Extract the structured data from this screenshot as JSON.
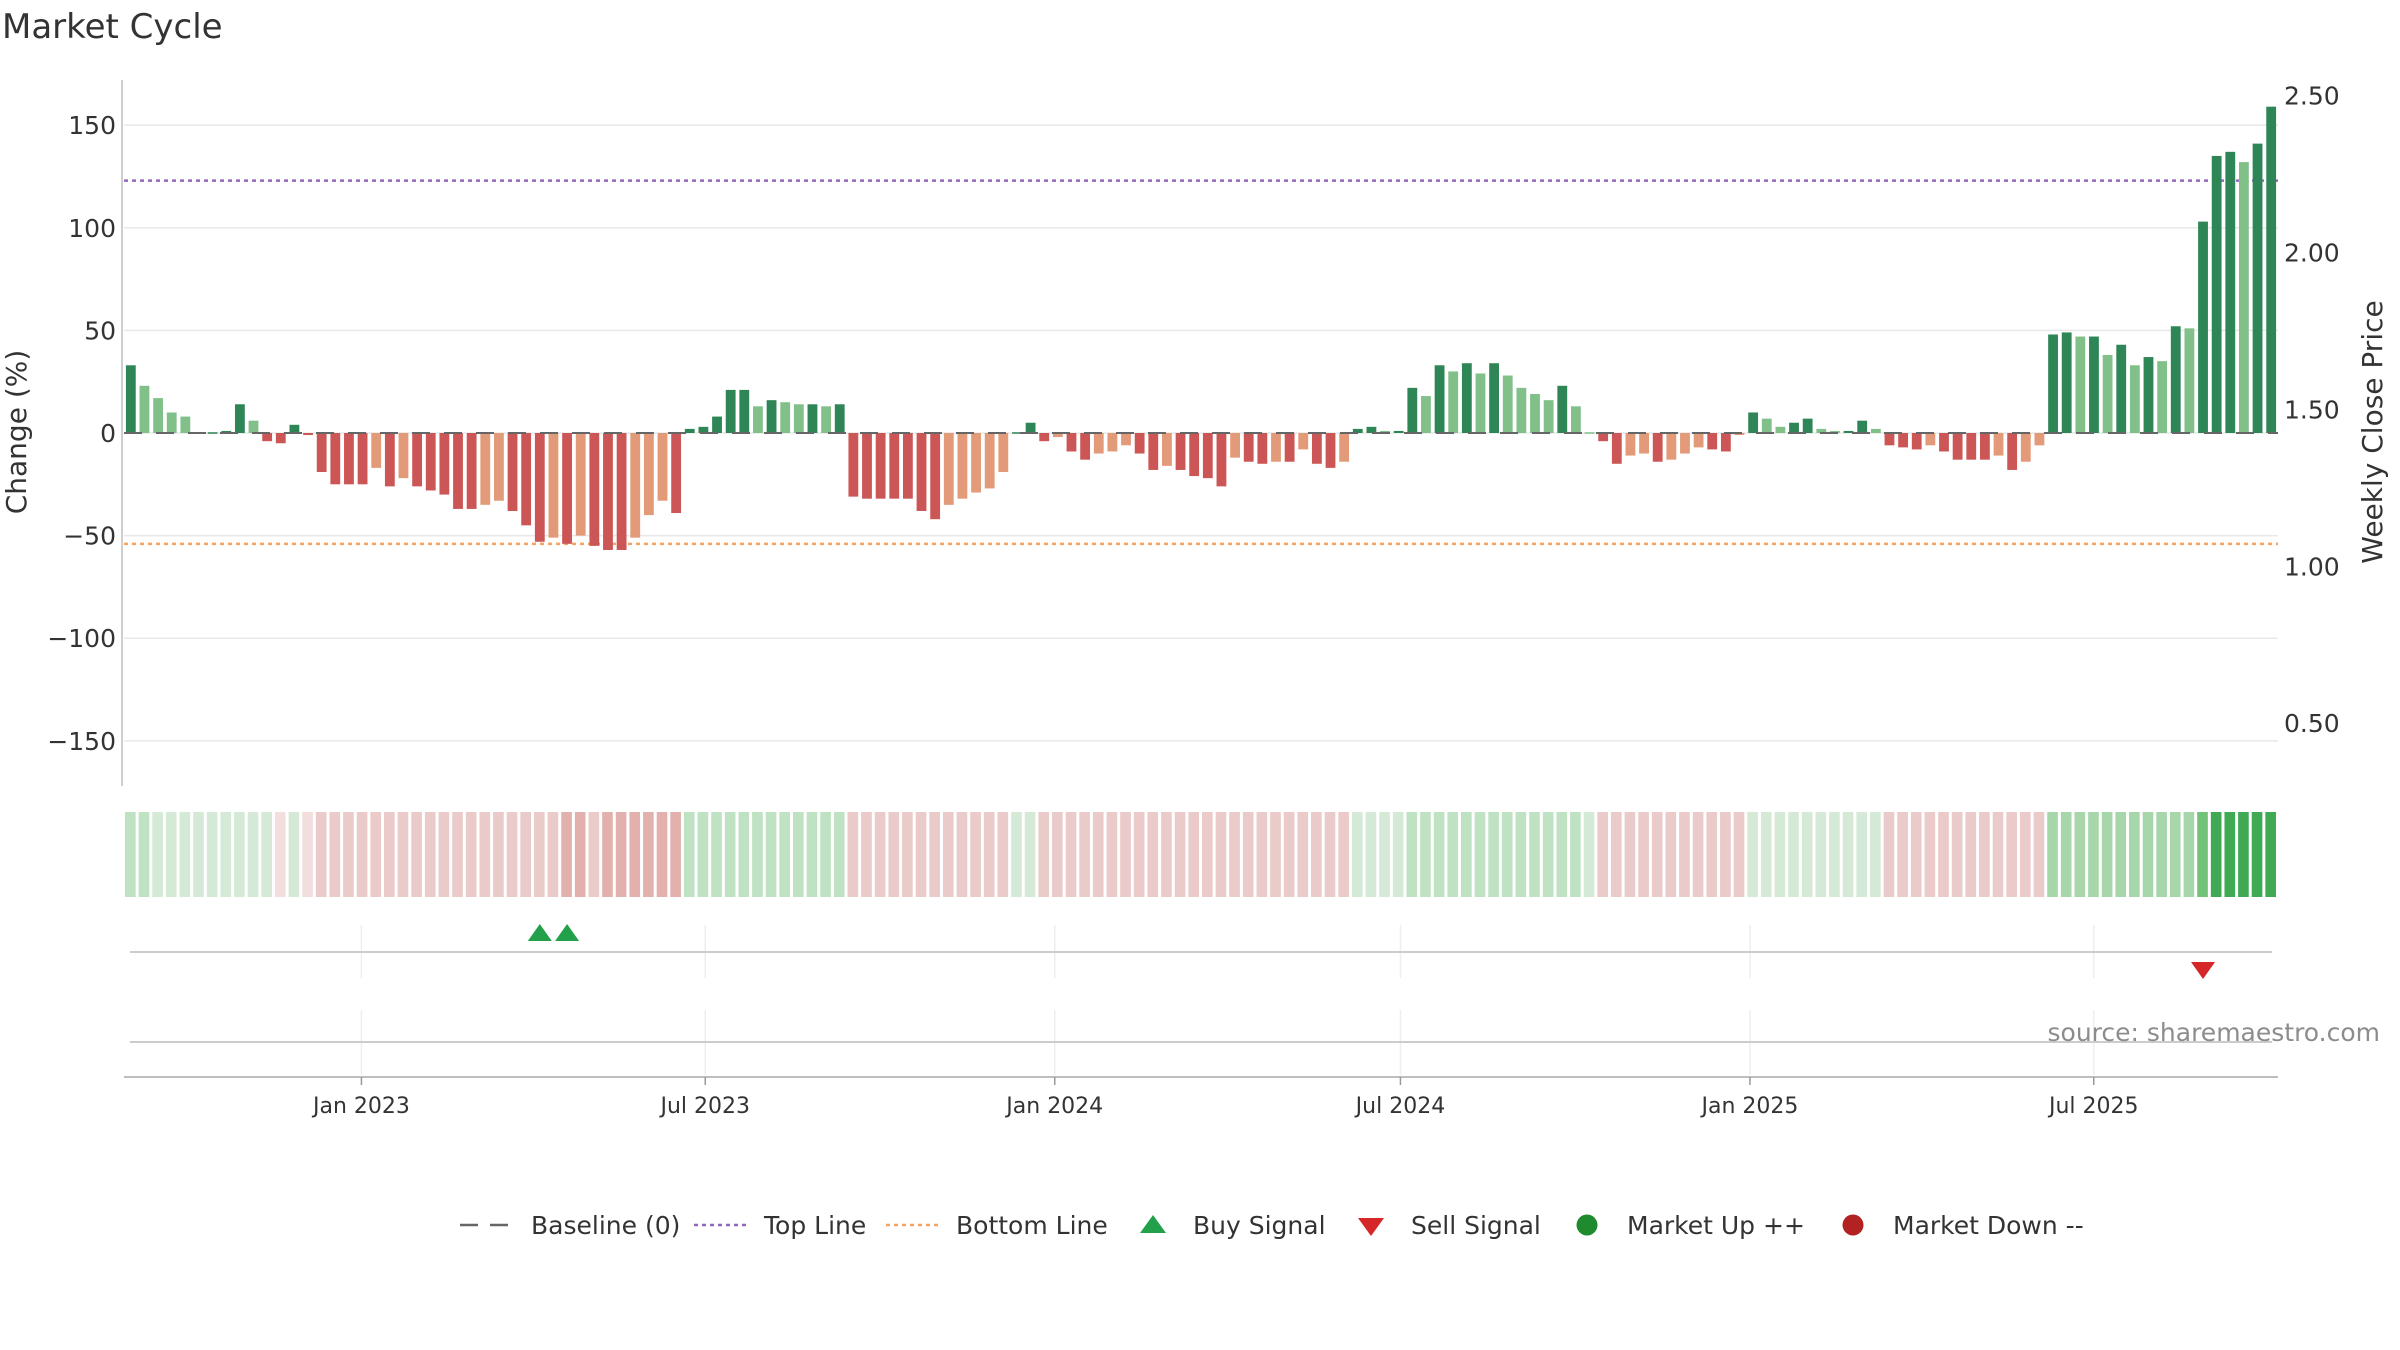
{
  "chart_data": {
    "type": "bar",
    "title": "Market Cycle",
    "ylabel": "Change (%)",
    "y2label": "Weekly Close Price",
    "ylim": [
      -172,
      172
    ],
    "y2lim": [
      0.3,
      2.55
    ],
    "yticks": [
      "150",
      "100",
      "50",
      "0",
      "−50",
      "−100",
      "−150"
    ],
    "yticks_values": [
      150,
      100,
      50,
      0,
      -50,
      -100,
      -150
    ],
    "y2ticks": [
      "2.50",
      "2.00",
      "1.50",
      "1.00",
      "0.50"
    ],
    "y2ticks_values": [
      2.5,
      2.0,
      1.5,
      1.0,
      0.5
    ],
    "xticks": [
      "Jan 2023",
      "Jul 2023",
      "Jan 2024",
      "Jul 2024",
      "Jan 2025",
      "Jul 2025"
    ],
    "xticks_dates": [
      "2023-01-01",
      "2023-07-01",
      "2024-01-01",
      "2024-07-01",
      "2025-01-01",
      "2025-07-01"
    ],
    "x_start": "2022-08-29",
    "x_end": "2025-10-06",
    "grid": true,
    "reference_lines": {
      "baseline": 0,
      "top_line": 123,
      "bottom_line": -54
    },
    "values": [
      33,
      23,
      17,
      10,
      8,
      0,
      0,
      1,
      14,
      6,
      -4,
      -5,
      4,
      -1,
      -19,
      -25,
      -25,
      -25,
      -17,
      -26,
      -22,
      -26,
      -28,
      -30,
      -37,
      -37,
      -35,
      -33,
      -38,
      -45,
      -53,
      -51,
      -54,
      -50,
      -55,
      -57,
      -57,
      -51,
      -40,
      -33,
      -39,
      2,
      3,
      8,
      21,
      21,
      13,
      16,
      15,
      14,
      14,
      13,
      14,
      -31,
      -32,
      -32,
      -32,
      -32,
      -38,
      -42,
      -35,
      -32,
      -29,
      -27,
      -19,
      0,
      5,
      -4,
      -2,
      -9,
      -13,
      -10,
      -9,
      -6,
      -10,
      -18,
      -16,
      -18,
      -21,
      -22,
      -26,
      -12,
      -14,
      -15,
      -14,
      -14,
      -8,
      -15,
      -17,
      -14,
      2,
      3,
      1,
      1,
      22,
      18,
      33,
      30,
      34,
      29,
      34,
      28,
      22,
      19,
      16,
      23,
      13,
      0,
      -4,
      -15,
      -11,
      -10,
      -14,
      -13,
      -10,
      -7,
      -8,
      -9,
      -1,
      10,
      7,
      3,
      5,
      7,
      2,
      1,
      1,
      6,
      2,
      -6,
      -7,
      -8,
      -6,
      -9,
      -13,
      -13,
      -13,
      -11,
      -18,
      -14,
      -6,
      48,
      49,
      47,
      47,
      38,
      43,
      33,
      37,
      35,
      52,
      51,
      103,
      135,
      137,
      132,
      141,
      159
    ],
    "phase_colors": [
      3,
      3,
      2,
      2,
      2,
      2,
      2,
      2,
      2,
      2,
      2,
      -2,
      2,
      -2,
      -3,
      -3,
      -3,
      -3,
      -3,
      -3,
      -3,
      -3,
      -3,
      -3,
      -3,
      -3,
      -3,
      -3,
      -3,
      -3,
      -3,
      -3,
      -4,
      -4,
      -3,
      -4,
      -4,
      -4,
      -4,
      -4,
      -4,
      3,
      3,
      3,
      3,
      3,
      3,
      3,
      3,
      3,
      3,
      3,
      3,
      -3,
      -3,
      -3,
      -3,
      -3,
      -3,
      -3,
      -3,
      -3,
      -3,
      -3,
      -3,
      2,
      2,
      -3,
      -3,
      -3,
      -3,
      -3,
      -3,
      -3,
      -3,
      -3,
      -3,
      -3,
      -3,
      -3,
      -3,
      -3,
      -3,
      -3,
      -3,
      -3,
      -3,
      -3,
      -3,
      -3,
      2,
      2,
      2,
      2,
      3,
      3,
      3,
      3,
      3,
      3,
      3,
      3,
      3,
      3,
      3,
      3,
      3,
      2,
      -3,
      -3,
      -3,
      -3,
      -3,
      -3,
      -3,
      -3,
      -3,
      -3,
      -3,
      2,
      2,
      2,
      2,
      2,
      2,
      2,
      2,
      2,
      2,
      -3,
      -3,
      -3,
      -3,
      -3,
      -3,
      -3,
      -3,
      -3,
      -3,
      -3,
      -3,
      4,
      4,
      4,
      4,
      4,
      4,
      4,
      4,
      4,
      4,
      4,
      5,
      6,
      6,
      6,
      6,
      6
    ],
    "bar_colors": {
      "up_dark": "#2e8555",
      "up_light": "#82c08a",
      "down_dark": "#cc5656",
      "down_light": "#e39a79"
    },
    "phase_palette": {
      "-4": "#e3b1ad",
      "-3": "#ebcaca",
      "-2": "#f3dede",
      "2": "#d4ead6",
      "3": "#bfe2c2",
      "4": "#a6d6a9",
      "5": "#72c27a",
      "6": "#3fa954"
    },
    "signals": {
      "buy": [
        30,
        32
      ],
      "sell": [
        152
      ]
    },
    "legend": {
      "position": "bottom-center",
      "items": [
        {
          "label": "Baseline (0)",
          "marker": "dashed-line",
          "color": "#666666"
        },
        {
          "label": "Top Line",
          "marker": "dotted-line",
          "color": "#9467bd"
        },
        {
          "label": "Bottom Line",
          "marker": "dotted-line",
          "color": "#f4a460"
        },
        {
          "label": "Buy Signal",
          "marker": "triangle-up",
          "color": "#22a14a"
        },
        {
          "label": "Sell Signal",
          "marker": "triangle-down",
          "color": "#d62728"
        },
        {
          "label": "Market Up ++",
          "marker": "circle",
          "color": "#1f8a2e"
        },
        {
          "label": "Market Down --",
          "marker": "circle",
          "color": "#b22222"
        }
      ]
    },
    "source": "source: sharemaestro.com",
    "colors": {
      "grid": "#e8e8e8",
      "axis": "#bdbdbd",
      "text": "#333333",
      "top_line": "#9467bd",
      "bottom_line": "#f4a460",
      "buy": "#22a14a",
      "sell": "#d62728",
      "source_text": "#8c8c8c"
    }
  }
}
